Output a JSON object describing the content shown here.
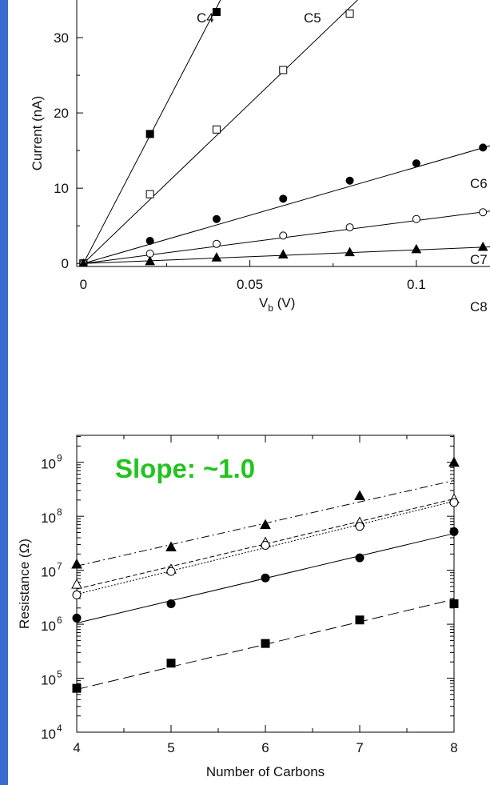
{
  "colors": {
    "background": "#3a6bd1",
    "panel": "#ffffff",
    "annotation": "#22c31e"
  },
  "panel_letter": ")",
  "chart_data": [
    {
      "type": "line",
      "xlabel_main": "V",
      "xlabel_sub": "b",
      "xlabel_unit": " (V)",
      "ylabel": "Current (nA)",
      "xlim": [
        -0.002,
        0.125
      ],
      "ylim": [
        -0.4,
        35
      ],
      "xticks": [
        0,
        0.05,
        0.1
      ],
      "xtick_labels": [
        "0",
        "0.05",
        "0.1"
      ],
      "yticks": [
        0,
        10,
        20,
        30
      ],
      "ytick_labels": [
        "0",
        "10",
        "20",
        "30"
      ],
      "series": [
        {
          "name": "C4",
          "marker": "filled-square",
          "x": [
            0,
            0.02,
            0.04
          ],
          "y": [
            0,
            17.2,
            33.4
          ],
          "slope": 850
        },
        {
          "name": "C5",
          "marker": "open-square",
          "x": [
            0,
            0.02,
            0.04,
            0.06,
            0.08
          ],
          "y": [
            0,
            9.2,
            17.8,
            25.7,
            33.2
          ],
          "slope": 425
        },
        {
          "name": "C6",
          "marker": "filled-circle",
          "x": [
            0,
            0.02,
            0.04,
            0.06,
            0.08,
            0.1,
            0.12
          ],
          "y": [
            0,
            3.0,
            5.9,
            8.6,
            11.0,
            13.3,
            15.4
          ],
          "slope": 128
        },
        {
          "name": "C7",
          "marker": "open-circle",
          "x": [
            0,
            0.02,
            0.04,
            0.06,
            0.08,
            0.1,
            0.12
          ],
          "y": [
            0,
            1.3,
            2.6,
            3.7,
            4.8,
            5.9,
            6.8
          ],
          "slope": 57
        },
        {
          "name": "C8",
          "marker": "filled-triangle",
          "x": [
            0,
            0.02,
            0.04,
            0.06,
            0.08,
            0.1,
            0.12
          ],
          "y": [
            0,
            0.3,
            0.8,
            1.2,
            1.5,
            1.9,
            2.2
          ],
          "slope": 18
        }
      ]
    },
    {
      "type": "scatter",
      "scale": "log-y",
      "xlabel": "Number of Carbons",
      "ylabel_main": "Resistance (",
      "ylabel_omega": "Ω",
      "ylabel_close": ")",
      "annotation": "Slope: ~1.0",
      "xlim": [
        4,
        8
      ],
      "ylim_exp": [
        4,
        9.5
      ],
      "xticks": [
        4,
        5,
        6,
        7,
        8
      ],
      "xtick_labels": [
        "4",
        "5",
        "6",
        "7",
        "8"
      ],
      "ytick_exps": [
        4,
        5,
        6,
        7,
        8,
        9
      ],
      "ytick_base": "10",
      "ytick_sups": [
        "4",
        "5",
        "6",
        "7",
        "8",
        "9"
      ],
      "series": [
        {
          "marker": "filled-triangle",
          "dash": "10,4,2,4",
          "x": [
            4,
            5,
            6,
            7,
            8
          ],
          "y": [
            13000000,
            27000000,
            70000000,
            240000000,
            1000000000
          ],
          "fit": [
            12000000,
            460000000
          ]
        },
        {
          "marker": "open-triangle",
          "dash": "6,3",
          "x": [
            4,
            5,
            6,
            7,
            8
          ],
          "y": [
            5500000,
            10500000,
            33000000,
            78000000,
            210000000
          ],
          "fit": [
            4500000,
            210000000
          ]
        },
        {
          "marker": "open-circle",
          "dash": "2,2",
          "x": [
            4,
            5,
            6,
            7,
            8
          ],
          "y": [
            3500000,
            9500000,
            29000000,
            65000000,
            180000000
          ],
          "fit": [
            3600000,
            190000000
          ]
        },
        {
          "marker": "filled-circle",
          "dash": "",
          "x": [
            4,
            5,
            6,
            7,
            8
          ],
          "y": [
            1300000,
            2400000,
            7200000,
            17000000,
            52000000
          ],
          "fit": [
            1050000,
            48000000
          ]
        },
        {
          "marker": "filled-square",
          "dash": "14,6",
          "x": [
            4,
            5,
            6,
            7,
            8
          ],
          "y": [
            65000,
            190000,
            440000,
            1200000,
            2400000
          ],
          "fit": [
            62000,
            2900000
          ]
        }
      ]
    }
  ]
}
